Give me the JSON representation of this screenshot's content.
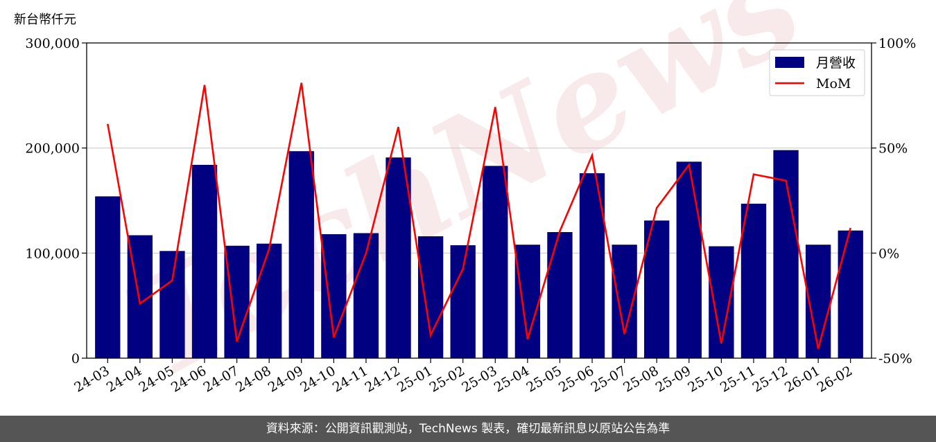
{
  "chart_data": {
    "type": "bar+line",
    "y_unit_label": "新台幣仟元",
    "categories": [
      "24-03",
      "24-04",
      "24-05",
      "24-06",
      "24-07",
      "24-08",
      "24-09",
      "24-10",
      "24-11",
      "24-12",
      "25-01",
      "25-02",
      "25-03",
      "25-04",
      "25-05",
      "25-06",
      "25-07",
      "25-08",
      "25-09",
      "25-10",
      "25-11",
      "25-12",
      "26-01",
      "26-02"
    ],
    "series": [
      {
        "name": "月營收",
        "type": "bar",
        "axis": "left",
        "color": "#000080",
        "values": [
          154000,
          117000,
          102000,
          184000,
          107000,
          109000,
          197000,
          118000,
          119000,
          191000,
          116000,
          107500,
          183000,
          108000,
          120000,
          176000,
          108000,
          131000,
          187000,
          106500,
          147000,
          198000,
          108000,
          121500
        ]
      },
      {
        "name": "MoM",
        "type": "line",
        "axis": "right",
        "color": "#ff0000",
        "values": [
          61.5,
          -24,
          -13,
          80,
          -42,
          2,
          81,
          -40,
          0,
          60,
          -39,
          -7.5,
          69.5,
          -41,
          10.5,
          46.5,
          -38.5,
          21.5,
          42,
          -43,
          37.5,
          34.5,
          -45.5,
          12
        ]
      }
    ],
    "y_left": {
      "min": 0,
      "max": 300000,
      "ticks": [
        0,
        100000,
        200000,
        300000
      ],
      "tick_labels": [
        "0",
        "100,000",
        "200,000",
        "300,000"
      ]
    },
    "y_right": {
      "min": -50,
      "max": 100,
      "ticks": [
        -50,
        0,
        50,
        100
      ],
      "tick_labels": [
        "-50%",
        "0%",
        "50%",
        "100%"
      ]
    },
    "grid": "horizontal",
    "legend": {
      "position": "top-right",
      "entries": [
        "月營收",
        "MoM"
      ]
    },
    "watermark": "TechNews"
  },
  "footer": {
    "text": "資料來源：公開資訊觀測站，TechNews 製表，確切最新訊息以原站公告為準"
  }
}
